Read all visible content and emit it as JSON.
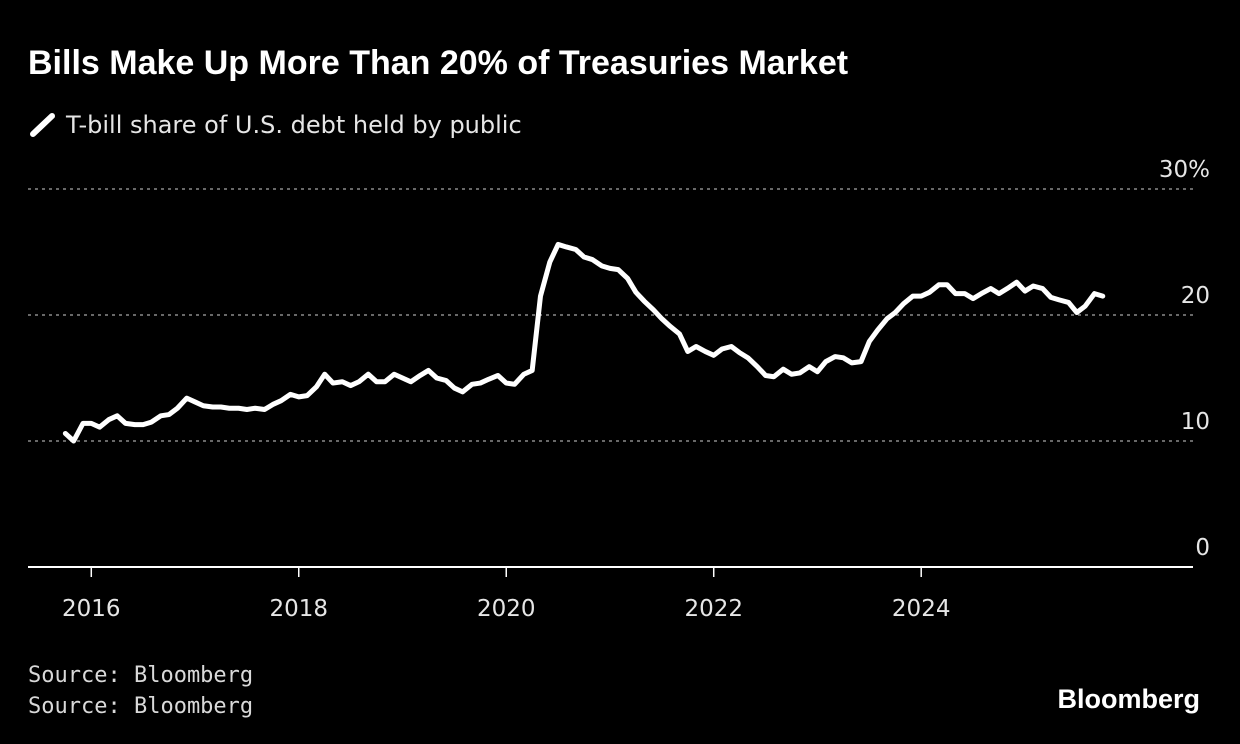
{
  "chart_data": {
    "type": "line",
    "title": "Bills Make Up More Than 20% of Treasuries Market",
    "x": [
      2015.75,
      2015.83,
      2015.92,
      2016,
      2016.08,
      2016.17,
      2016.25,
      2016.33,
      2016.42,
      2016.5,
      2016.58,
      2016.67,
      2016.75,
      2016.83,
      2016.92,
      2017,
      2017.08,
      2017.17,
      2017.25,
      2017.33,
      2017.42,
      2017.5,
      2017.58,
      2017.67,
      2017.75,
      2017.83,
      2017.92,
      2018,
      2018.08,
      2018.17,
      2018.25,
      2018.33,
      2018.42,
      2018.5,
      2018.58,
      2018.67,
      2018.75,
      2018.83,
      2018.92,
      2019,
      2019.08,
      2019.17,
      2019.25,
      2019.33,
      2019.42,
      2019.5,
      2019.58,
      2019.67,
      2019.75,
      2019.83,
      2019.92,
      2020,
      2020.08,
      2020.17,
      2020.25,
      2020.33,
      2020.42,
      2020.5,
      2020.58,
      2020.67,
      2020.75,
      2020.83,
      2020.92,
      2021,
      2021.08,
      2021.17,
      2021.25,
      2021.33,
      2021.42,
      2021.5,
      2021.58,
      2021.67,
      2021.75,
      2021.83,
      2021.92,
      2022,
      2022.08,
      2022.17,
      2022.25,
      2022.33,
      2022.42,
      2022.5,
      2022.58,
      2022.67,
      2022.75,
      2022.83,
      2022.92,
      2023,
      2023.08,
      2023.17,
      2023.25,
      2023.33,
      2023.42,
      2023.5,
      2023.58,
      2023.67,
      2023.75,
      2023.83,
      2023.92,
      2024,
      2024.08,
      2024.17,
      2024.25,
      2024.33,
      2024.42,
      2024.5,
      2024.58,
      2024.67,
      2024.75,
      2024.83,
      2024.92,
      2025,
      2025.08,
      2025.17,
      2025.25,
      2025.33,
      2025.42,
      2025.5,
      2025.58,
      2025.67,
      2025.75
    ],
    "series": [
      {
        "name": "T-bill share of U.S. debt held by public",
        "color": "#ffffff",
        "values": [
          10.6,
          10.0,
          11.4,
          11.4,
          11.1,
          11.7,
          12.0,
          11.4,
          11.3,
          11.3,
          11.5,
          12.0,
          12.1,
          12.6,
          13.4,
          13.1,
          12.8,
          12.7,
          12.7,
          12.6,
          12.6,
          12.5,
          12.6,
          12.5,
          12.9,
          13.2,
          13.7,
          13.5,
          13.6,
          14.3,
          15.3,
          14.6,
          14.7,
          14.4,
          14.7,
          15.3,
          14.7,
          14.7,
          15.3,
          15.0,
          14.7,
          15.2,
          15.6,
          15.0,
          14.8,
          14.2,
          13.9,
          14.5,
          14.6,
          14.9,
          15.2,
          14.6,
          14.5,
          15.3,
          15.6,
          21.5,
          24.2,
          25.6,
          25.4,
          25.2,
          24.6,
          24.4,
          23.9,
          23.7,
          23.6,
          22.9,
          21.8,
          21.1,
          20.4,
          19.7,
          19.1,
          18.5,
          17.1,
          17.5,
          17.1,
          16.8,
          17.3,
          17.5,
          17.0,
          16.6,
          15.9,
          15.2,
          15.1,
          15.7,
          15.3,
          15.4,
          15.9,
          15.5,
          16.3,
          16.7,
          16.6,
          16.2,
          16.3,
          17.9,
          18.8,
          19.7,
          20.2,
          20.9,
          21.5,
          21.5,
          21.8,
          22.4,
          22.4,
          21.7,
          21.7,
          21.3,
          21.7,
          22.1,
          21.7,
          22.1,
          22.6,
          21.9,
          22.3,
          22.1,
          21.4,
          21.2,
          21.0,
          20.2,
          20.7,
          21.7,
          21.5
        ]
      }
    ],
    "xlim": [
      2015.39,
      2026.62
    ],
    "xticks": [
      2016,
      2018,
      2020,
      2022,
      2024
    ],
    "ylim": [
      0,
      30
    ],
    "yticks": [
      0,
      10,
      20,
      {
        "value": 30,
        "label": "30%"
      }
    ],
    "grid": true,
    "source": [
      "Source: Bloomberg",
      "Source: Bloomberg"
    ],
    "logo": "Bloomberg"
  }
}
